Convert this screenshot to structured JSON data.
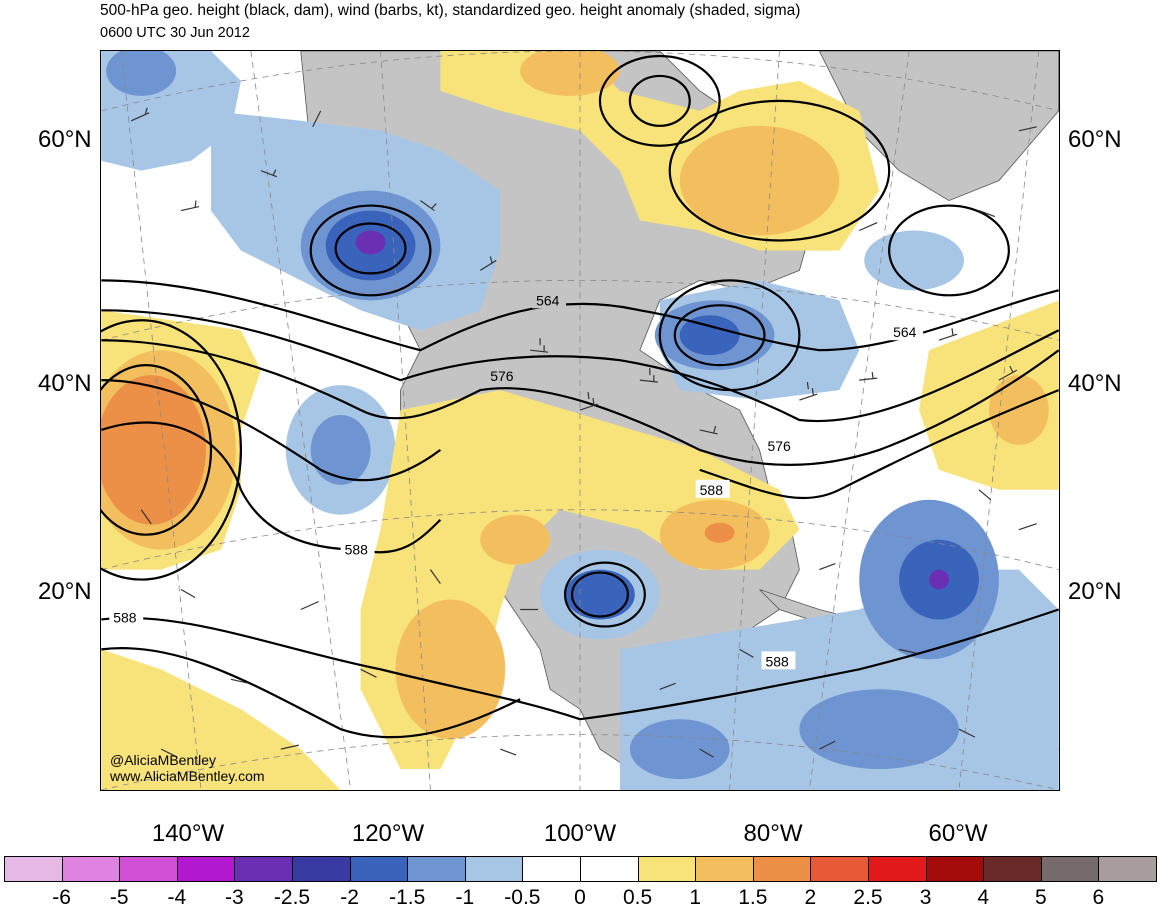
{
  "title": "500-hPa geo. height (black, dam), wind (barbs, kt), standardized geo. height anomaly (shaded, sigma)",
  "valid_time": "0600 UTC 30 Jun 2012",
  "lat_labels": [
    "60°N",
    "40°N",
    "20°N"
  ],
  "lon_labels": [
    "140°W",
    "120°W",
    "100°W",
    "80°W",
    "60°W"
  ],
  "contour_labels": [
    "564",
    "564",
    "576",
    "576",
    "588",
    "588",
    "588",
    "588"
  ],
  "credits": {
    "handle": "@AliciaMBentley",
    "website": "www.AliciaMBentley.com"
  },
  "colorbar": {
    "labels": [
      "-6",
      "-5",
      "-4",
      "-3",
      "-2.5",
      "-2",
      "-1.5",
      "-1",
      "-0.5",
      "0",
      "0.5",
      "1",
      "1.5",
      "2",
      "2.5",
      "3",
      "4",
      "5",
      "6"
    ],
    "colors": [
      "#e6b8e6",
      "#e083e0",
      "#d24fd8",
      "#b218cf",
      "#6b2fb3",
      "#3a3aa3",
      "#3a63bb",
      "#6e94d2",
      "#a7c6e6",
      "#ffffff",
      "#ffffff",
      "#f8e27a",
      "#f3bf5e",
      "#ec8f47",
      "#e85a37",
      "#e31a1c",
      "#a30a0a",
      "#6b2a2a",
      "#766a6a",
      "#a89c9c"
    ]
  },
  "colors": {
    "land": "#c4c4c4",
    "ocean": "#ffffff",
    "height_contour": "#000000"
  }
}
